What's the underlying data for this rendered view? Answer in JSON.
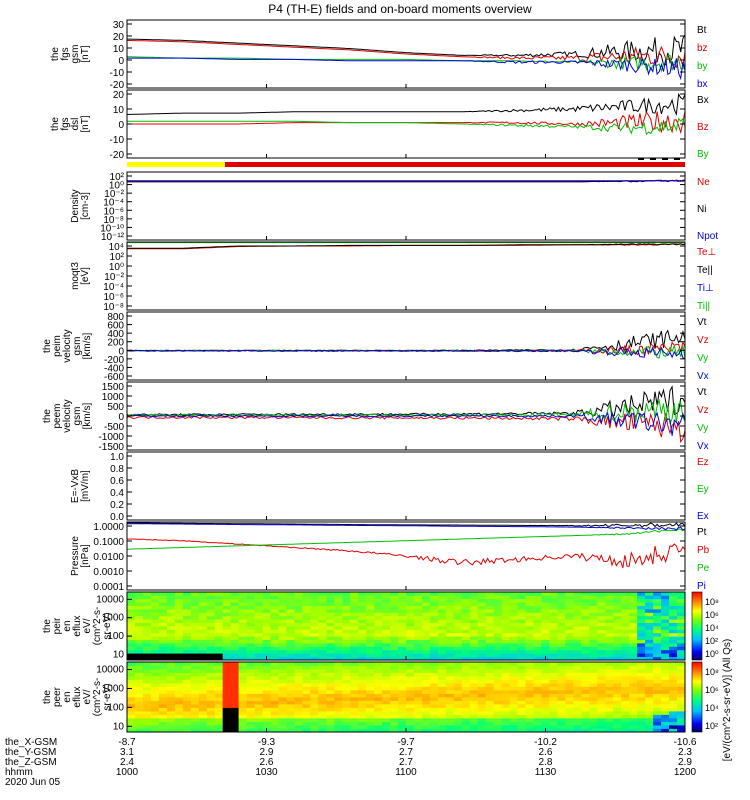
{
  "title": "P4 (TH-E) fields and on-board moments overview",
  "colors": {
    "black": "#000000",
    "red": "#e00000",
    "green": "#00c000",
    "blue": "#0000e0",
    "yellow": "#ffff00"
  },
  "chart_data": [
    {
      "type": "line",
      "id": "fgs-gsm",
      "ylabel": [
        "the",
        "fgs",
        "gsm",
        "[nT]"
      ],
      "y_ticks": [
        "30",
        "20",
        "10",
        "0",
        "-10",
        "-20"
      ],
      "ylim": [
        -20,
        30
      ],
      "series": [
        {
          "name": "Bt",
          "color": "#000000",
          "base": [
            16,
            15,
            13,
            11,
            9,
            6,
            4,
            4,
            5,
            7,
            8
          ],
          "noise": [
            0,
            0,
            0,
            0,
            0,
            0,
            0,
            1,
            2,
            8,
            12
          ]
        },
        {
          "name": "bz",
          "color": "#e00000",
          "base": [
            15,
            14,
            12,
            10,
            8,
            5,
            3,
            2,
            2,
            3,
            4
          ],
          "noise": [
            0,
            0,
            0,
            0,
            0,
            0,
            0,
            1,
            2,
            7,
            10
          ]
        },
        {
          "name": "by",
          "color": "#00c000",
          "base": [
            3,
            2,
            2,
            1,
            1,
            1,
            0,
            0,
            -1,
            -2,
            0
          ],
          "noise": [
            0,
            0,
            0,
            0,
            0,
            0,
            0,
            0,
            1,
            5,
            8
          ]
        },
        {
          "name": "bx",
          "color": "#0000e0",
          "base": [
            2,
            2,
            1,
            1,
            0,
            0,
            0,
            -1,
            -1,
            -3,
            -6
          ],
          "noise": [
            0,
            0,
            0,
            0,
            0,
            0,
            0,
            1,
            1,
            5,
            8
          ]
        }
      ]
    },
    {
      "type": "line",
      "id": "fgs-dsl",
      "ylabel": [
        "the",
        "fgs",
        "dsl",
        "[nT]"
      ],
      "y_ticks": [
        "20",
        "10",
        "0",
        "-10",
        "-20"
      ],
      "ylim": [
        -28,
        22
      ],
      "series": [
        {
          "name": "Bx",
          "color": "#000000",
          "base": [
            4,
            5,
            5,
            6,
            6,
            6,
            6,
            7,
            8,
            10,
            12
          ],
          "noise": [
            0,
            0,
            0,
            0,
            0,
            0,
            0,
            1,
            2,
            5,
            8
          ]
        },
        {
          "name": "Bz",
          "color": "#e00000",
          "base": [
            -3,
            -3,
            -3,
            -2,
            -2,
            -2,
            -2,
            -2,
            -3,
            -2,
            0
          ],
          "noise": [
            0,
            0,
            0,
            0,
            0,
            0,
            0,
            1,
            1,
            6,
            10
          ]
        },
        {
          "name": "By",
          "color": "#00c000",
          "base": [
            -1,
            -1,
            -1,
            -1,
            -2,
            -2,
            -3,
            -4,
            -5,
            -6,
            -4
          ],
          "noise": [
            0,
            0,
            0,
            0,
            0,
            0,
            0,
            1,
            1,
            4,
            8
          ]
        }
      ]
    },
    {
      "type": "line",
      "id": "density",
      "ylabel": [
        "Density",
        "[cm-3]"
      ],
      "scale": "log",
      "y_ticks": [
        "10²",
        "10⁰",
        "10⁻²",
        "10⁻⁴",
        "10⁻⁶",
        "10⁻⁸",
        "10⁻¹⁰",
        "10⁻¹²"
      ],
      "ylim": [
        -12,
        2
      ],
      "series": [
        {
          "name": "Ne",
          "color": "#e00000",
          "base": [
            0,
            0,
            0,
            0,
            0,
            0,
            0,
            0,
            0,
            0.1,
            0.2
          ],
          "noise": [
            0,
            0,
            0,
            0,
            0,
            0,
            0,
            0,
            0,
            0.1,
            0.2
          ]
        },
        {
          "name": "Ni",
          "color": "#000000",
          "base": [
            0,
            0,
            0,
            0,
            0,
            0,
            0,
            0,
            0,
            0.1,
            0.2
          ],
          "noise": [
            0,
            0,
            0,
            0,
            0,
            0,
            0,
            0,
            0,
            0.1,
            0.2
          ]
        },
        {
          "name": "Npot",
          "color": "#0000e0",
          "base": [
            0.2,
            0.2,
            0.2,
            0.2,
            0.2,
            0.2,
            0.2,
            0.2,
            0.2,
            0.2,
            0.2
          ],
          "noise": [
            0,
            0,
            0,
            0,
            0,
            0,
            0,
            0,
            0,
            0,
            0
          ]
        }
      ]
    },
    {
      "type": "line",
      "id": "temperature",
      "ylabel": [
        "moqt3",
        "[eV]"
      ],
      "scale": "log",
      "y_ticks": [
        "10⁴",
        "10²",
        "10⁰",
        "10⁻²",
        "10⁻⁴",
        "10⁻⁶",
        "10⁻⁸"
      ],
      "ylim": [
        -8,
        4
      ],
      "series": [
        {
          "name": "Te⊥",
          "color": "#e00000",
          "base": [
            2.8,
            2.8,
            3.2,
            3.3,
            3.3,
            3.4,
            3.4,
            3.4,
            3.5,
            3.5,
            3.6
          ],
          "noise": [
            0,
            0,
            0,
            0,
            0,
            0,
            0,
            0,
            0,
            0.1,
            0.1
          ]
        },
        {
          "name": "Te||",
          "color": "#000000",
          "base": [
            2.9,
            2.9,
            3.3,
            3.3,
            3.4,
            3.4,
            3.4,
            3.5,
            3.5,
            3.6,
            3.6
          ],
          "noise": [
            0,
            0,
            0,
            0,
            0,
            0,
            0,
            0,
            0,
            0.1,
            0.1
          ]
        },
        {
          "name": "Ti⊥",
          "color": "#0000e0",
          "base": [
            4,
            4,
            4,
            4,
            4,
            4,
            4,
            4,
            4,
            4,
            4
          ],
          "noise": [
            0,
            0,
            0,
            0,
            0,
            0,
            0,
            0,
            0,
            0,
            0
          ]
        },
        {
          "name": "Ti||",
          "color": "#00c000",
          "base": [
            3.9,
            3.9,
            3.9,
            3.9,
            3.9,
            3.9,
            3.9,
            3.9,
            3.9,
            3.9,
            3.9
          ],
          "noise": [
            0,
            0,
            0,
            0,
            0,
            0,
            0,
            0,
            0,
            0,
            0
          ]
        }
      ]
    },
    {
      "type": "line",
      "id": "peim-velocity",
      "ylabel": [
        "the",
        "peim",
        "velocity",
        "gsm",
        "[km/s]"
      ],
      "y_ticks": [
        "800",
        "600",
        "400",
        "200",
        "0",
        "-200",
        "-400",
        "-600"
      ],
      "ylim": [
        -600,
        800
      ],
      "series": [
        {
          "name": "Vt",
          "color": "#000000",
          "base": [
            10,
            10,
            10,
            10,
            10,
            10,
            10,
            15,
            20,
            150,
            300
          ],
          "noise": [
            5,
            5,
            5,
            5,
            5,
            5,
            8,
            10,
            20,
            150,
            200
          ]
        },
        {
          "name": "Vz",
          "color": "#e00000",
          "base": [
            0,
            0,
            0,
            0,
            0,
            0,
            0,
            0,
            0,
            20,
            60
          ],
          "noise": [
            10,
            10,
            10,
            10,
            10,
            10,
            15,
            15,
            20,
            100,
            150
          ]
        },
        {
          "name": "Vy",
          "color": "#00c000",
          "base": [
            0,
            0,
            0,
            0,
            0,
            0,
            0,
            0,
            0,
            -20,
            -40
          ],
          "noise": [
            10,
            10,
            10,
            10,
            10,
            10,
            15,
            15,
            20,
            100,
            150
          ]
        },
        {
          "name": "Vx",
          "color": "#0000e0",
          "base": [
            0,
            0,
            0,
            0,
            0,
            0,
            0,
            0,
            0,
            -30,
            -60
          ],
          "noise": [
            10,
            10,
            10,
            10,
            10,
            10,
            15,
            15,
            20,
            100,
            150
          ]
        }
      ]
    },
    {
      "type": "line",
      "id": "peem-velocity",
      "ylabel": [
        "the",
        "peem",
        "velocity",
        "gsm",
        "[km/s]"
      ],
      "y_ticks": [
        "1500",
        "1000",
        "500",
        "0",
        "-500",
        "-1000",
        "-1500"
      ],
      "ylim": [
        -1500,
        1500
      ],
      "series": [
        {
          "name": "Vt",
          "color": "#000000",
          "base": [
            60,
            60,
            70,
            70,
            80,
            80,
            90,
            100,
            120,
            400,
            800
          ],
          "noise": [
            40,
            40,
            40,
            40,
            40,
            40,
            50,
            60,
            80,
            500,
            700
          ]
        },
        {
          "name": "Vz",
          "color": "#e00000",
          "base": [
            -60,
            -60,
            -70,
            -70,
            -80,
            -80,
            -90,
            -100,
            -120,
            -300,
            -500
          ],
          "noise": [
            50,
            50,
            50,
            50,
            50,
            50,
            60,
            60,
            80,
            500,
            700
          ]
        },
        {
          "name": "Vy",
          "color": "#00c000",
          "base": [
            30,
            30,
            30,
            30,
            30,
            30,
            40,
            40,
            60,
            200,
            300
          ],
          "noise": [
            50,
            50,
            50,
            50,
            50,
            50,
            60,
            60,
            80,
            500,
            700
          ]
        },
        {
          "name": "Vx",
          "color": "#0000e0",
          "base": [
            0,
            0,
            0,
            0,
            0,
            0,
            0,
            0,
            0,
            -200,
            -400
          ],
          "noise": [
            30,
            30,
            30,
            30,
            30,
            30,
            40,
            40,
            60,
            400,
            600
          ]
        }
      ]
    },
    {
      "type": "line",
      "id": "efield",
      "ylabel": [
        "E=-VxB",
        "[mV/m]"
      ],
      "y_ticks": [
        "1.0",
        "0.8",
        "0.6",
        "0.4",
        "0.2",
        "0.0"
      ],
      "ylim": [
        0,
        1
      ],
      "series": [
        {
          "name": "Ez",
          "color": "#e00000",
          "base": [],
          "noise": []
        },
        {
          "name": "Ey",
          "color": "#00c000",
          "base": [],
          "noise": []
        },
        {
          "name": "Ex",
          "color": "#0000e0",
          "base": [],
          "noise": []
        }
      ]
    },
    {
      "type": "line",
      "id": "pressure",
      "ylabel": [
        "Pressure",
        "[nPa]"
      ],
      "scale": "log",
      "y_ticks": [
        "1.0000",
        "0.1000",
        "0.0100",
        "0.0010",
        "0.0001"
      ],
      "ylim": [
        -4,
        0
      ],
      "series": [
        {
          "name": "Pt",
          "color": "#000000",
          "base": [
            -0.05,
            -0.08,
            -0.1,
            -0.12,
            -0.15,
            -0.17,
            -0.18,
            -0.2,
            -0.22,
            -0.2,
            -0.15
          ],
          "noise": [
            0,
            0,
            0,
            0,
            0,
            0,
            0,
            0,
            0.02,
            0.1,
            0.15
          ]
        },
        {
          "name": "Pb",
          "color": "#e00000",
          "base": [
            -1.0,
            -1.1,
            -1.3,
            -1.5,
            -1.7,
            -2.0,
            -2.4,
            -2.2,
            -2.0,
            -2.3,
            -1.5
          ],
          "noise": [
            0.02,
            0.02,
            0.02,
            0.03,
            0.05,
            0.08,
            0.2,
            0.15,
            0.15,
            0.5,
            0.6
          ]
        },
        {
          "name": "Pe",
          "color": "#00c000",
          "base": [
            -1.6,
            -1.5,
            -1.4,
            -1.3,
            -1.2,
            -1.1,
            -1.0,
            -0.9,
            -0.8,
            -0.7,
            -0.4
          ],
          "noise": [
            0,
            0,
            0,
            0,
            0,
            0,
            0,
            0,
            0,
            0.05,
            0.1
          ]
        },
        {
          "name": "Pi",
          "color": "#0000e0",
          "base": [
            -0.1,
            -0.12,
            -0.15,
            -0.17,
            -0.2,
            -0.22,
            -0.25,
            -0.27,
            -0.3,
            -0.35,
            -0.4
          ],
          "noise": [
            0,
            0,
            0,
            0,
            0,
            0,
            0,
            0,
            0,
            0.05,
            0.1
          ]
        }
      ]
    },
    {
      "type": "heatmap",
      "id": "peir-spectrogram",
      "ylabel": [
        "the",
        "peir",
        "en",
        "eflux",
        "eV/",
        "(cm^2-s-",
        "sr-eV)"
      ],
      "scale": "log",
      "y_ticks": [
        "10000",
        "1000",
        "100",
        "10"
      ],
      "ylim": [
        5,
        25000
      ],
      "colorbar_ticks": [
        "10⁸",
        "10⁶",
        "10⁴",
        "10²",
        "10⁰"
      ]
    },
    {
      "type": "heatmap",
      "id": "peer-spectrogram",
      "ylabel": [
        "the",
        "peer",
        "en",
        "eflux",
        "eV/",
        "(cm^2-s-",
        "sr-eV)"
      ],
      "scale": "log",
      "y_ticks": [
        "10000",
        "1000",
        "100",
        "10"
      ],
      "ylim": [
        5,
        25000
      ],
      "colorbar_ticks": [
        "10⁸",
        "10⁶",
        "10⁴",
        "10²"
      ],
      "colorbar_label": "[eV/(cm^2-s-sr-eV)] (All Qs)"
    }
  ],
  "x_axis": {
    "tick_times": [
      "1000",
      "1030",
      "1100",
      "1130",
      "1200"
    ],
    "rows": [
      {
        "label": "the_X-GSM",
        "values": [
          "-8.7",
          "-9.3",
          "-9.7",
          "-10.2",
          "-10.6"
        ]
      },
      {
        "label": "the_Y-GSM",
        "values": [
          "3.1",
          "2.9",
          "2.7",
          "2.6",
          "2.3"
        ]
      },
      {
        "label": "the_Z-GSM",
        "values": [
          "2.4",
          "2.6",
          "2.7",
          "2.8",
          "2.9"
        ]
      },
      {
        "label": "hhmm",
        "values": [
          "1000",
          "1030",
          "1100",
          "1130",
          "1200"
        ]
      }
    ],
    "date": "2020 Jun 05"
  }
}
